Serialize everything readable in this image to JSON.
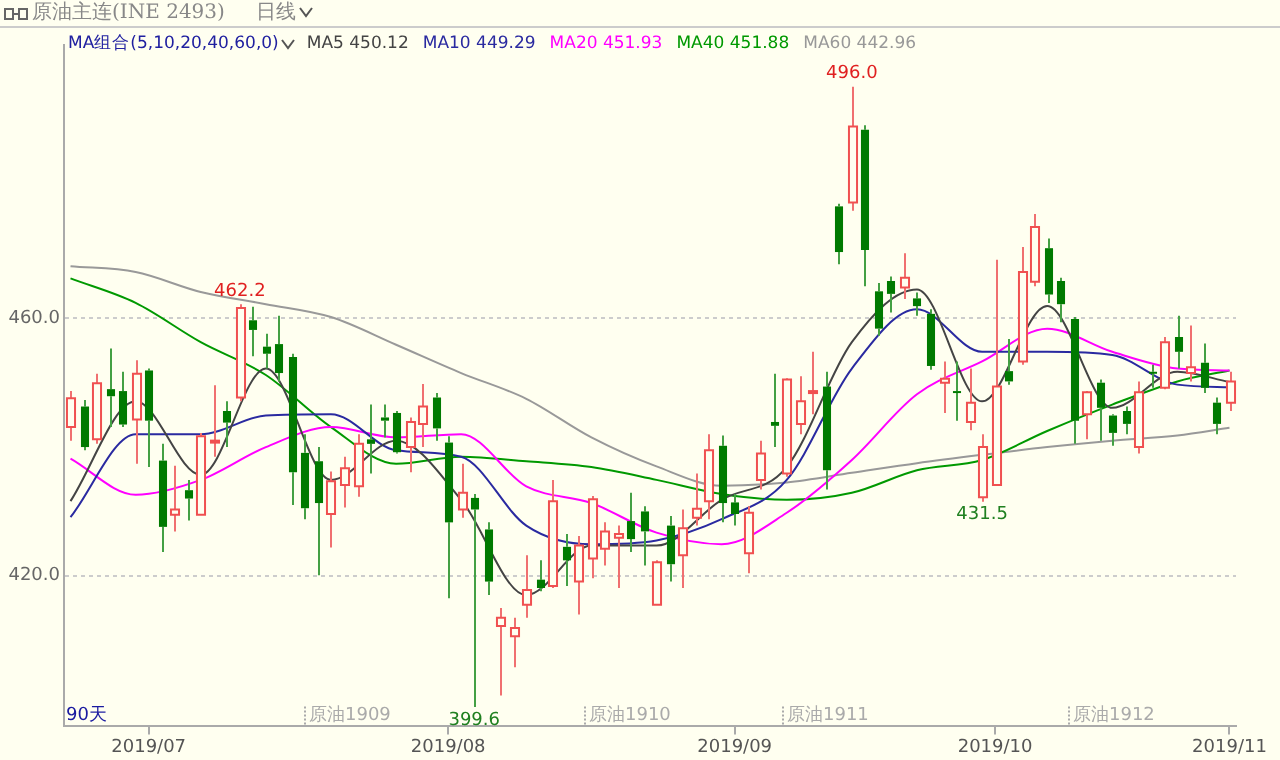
{
  "chart_data": {
    "type": "candlestick",
    "title": "原油主连(INE 2493)",
    "subtitle": "日线",
    "legend_title": "MA组合(5,10,20,40,60,0)",
    "legend": "top left",
    "grid": "y",
    "categories": [
      null,
      null,
      null,
      null,
      null,
      null,
      "2019/07",
      null,
      null,
      null,
      null,
      null,
      null,
      null,
      null,
      null,
      null,
      null,
      null,
      null,
      null,
      null,
      null,
      null,
      null,
      null,
      null,
      null,
      null,
      "2019/08",
      null,
      null,
      null,
      null,
      null,
      null,
      null,
      null,
      null,
      null,
      null,
      null,
      null,
      null,
      null,
      null,
      null,
      null,
      null,
      null,
      null,
      "2019/09",
      null,
      null,
      null,
      null,
      null,
      null,
      null,
      null,
      null,
      null,
      null,
      null,
      null,
      null,
      null,
      null,
      null,
      null,
      null,
      "2019/10",
      null,
      null,
      null,
      null,
      null,
      null,
      null,
      null,
      null,
      null,
      null,
      null,
      null,
      null,
      null,
      null,
      null,
      "2019/11"
    ],
    "ohlc": [
      [
        443.1,
        448.7,
        441.0,
        447.6
      ],
      [
        446.3,
        447.3,
        439.5,
        440.0
      ],
      [
        441.2,
        451.4,
        440.5,
        449.9
      ],
      [
        449.0,
        455.3,
        443.1,
        447.9
      ],
      [
        448.7,
        451.7,
        443.1,
        443.5
      ],
      [
        444.3,
        453.5,
        437.4,
        451.4
      ],
      [
        451.9,
        452.2,
        436.9,
        444.1
      ],
      [
        437.9,
        440.5,
        423.7,
        427.6
      ],
      [
        429.5,
        437.1,
        426.9,
        430.3
      ],
      [
        433.3,
        434.9,
        428.6,
        432.0
      ],
      [
        429.5,
        442.2,
        429.5,
        441.7
      ],
      [
        440.9,
        449.6,
        438.5,
        441.0
      ],
      [
        445.6,
        447.1,
        440.0,
        443.8
      ],
      [
        447.7,
        462.2,
        447.1,
        461.6
      ],
      [
        459.7,
        461.8,
        454.1,
        458.2
      ],
      [
        455.6,
        457.6,
        452.2,
        454.5
      ],
      [
        456.0,
        460.4,
        450.2,
        451.5
      ],
      [
        454.0,
        454.5,
        431.0,
        436.1
      ],
      [
        439.1,
        442.0,
        428.8,
        430.5
      ],
      [
        437.8,
        440.0,
        420.1,
        431.3
      ],
      [
        429.6,
        436.2,
        424.4,
        434.7
      ],
      [
        434.1,
        438.5,
        430.6,
        436.7
      ],
      [
        433.9,
        442.0,
        432.3,
        440.5
      ],
      [
        441.2,
        446.6,
        435.9,
        440.5
      ],
      [
        444.6,
        446.6,
        441.5,
        444.1
      ],
      [
        445.3,
        445.6,
        439.0,
        439.2
      ],
      [
        440.0,
        444.6,
        436.1,
        443.9
      ],
      [
        443.6,
        449.8,
        440.0,
        446.3
      ],
      [
        447.7,
        448.4,
        441.0,
        442.9
      ],
      [
        440.7,
        441.7,
        416.5,
        428.3
      ],
      [
        430.3,
        437.4,
        429.0,
        432.9
      ],
      [
        432.1,
        432.7,
        399.6,
        430.3
      ],
      [
        427.2,
        428.3,
        417.0,
        419.1
      ],
      [
        412.2,
        415.0,
        401.4,
        413.5
      ],
      [
        410.6,
        413.5,
        405.8,
        411.9
      ],
      [
        415.5,
        423.2,
        413.5,
        417.8
      ],
      [
        419.4,
        422.4,
        417.6,
        418.1
      ],
      [
        418.4,
        434.9,
        418.1,
        431.6
      ],
      [
        424.5,
        426.5,
        418.4,
        422.4
      ],
      [
        419.1,
        426.2,
        414.0,
        424.7
      ],
      [
        422.7,
        432.4,
        419.6,
        431.9
      ],
      [
        424.2,
        428.3,
        421.6,
        426.9
      ],
      [
        425.9,
        427.8,
        418.1,
        426.5
      ],
      [
        428.5,
        432.9,
        423.7,
        425.7
      ],
      [
        430.0,
        430.8,
        421.6,
        426.9
      ],
      [
        415.5,
        422.4,
        415.5,
        422.1
      ],
      [
        427.8,
        429.3,
        419.1,
        421.8
      ],
      [
        423.2,
        430.3,
        418.1,
        427.4
      ],
      [
        429.0,
        435.9,
        427.8,
        430.4
      ],
      [
        431.6,
        442.0,
        428.8,
        439.5
      ],
      [
        440.2,
        441.8,
        428.3,
        431.3
      ],
      [
        431.4,
        432.7,
        427.8,
        429.6
      ],
      [
        423.5,
        430.8,
        420.4,
        429.8
      ],
      [
        434.9,
        441.0,
        433.4,
        439.0
      ],
      [
        443.9,
        451.4,
        440.0,
        443.3
      ],
      [
        435.9,
        450.7,
        435.4,
        450.5
      ],
      [
        443.6,
        451.0,
        442.0,
        447.1
      ],
      [
        448.7,
        454.8,
        445.1,
        448.7
      ],
      [
        449.4,
        451.7,
        433.4,
        436.4
      ],
      [
        477.4,
        477.8,
        468.4,
        470.3
      ],
      [
        478.0,
        496.0,
        476.7,
        489.8
      ],
      [
        489.3,
        490.0,
        465.0,
        470.6
      ],
      [
        464.2,
        465.5,
        457.3,
        458.4
      ],
      [
        465.8,
        466.5,
        460.9,
        463.8
      ],
      [
        464.8,
        470.1,
        463.0,
        466.3
      ],
      [
        463.1,
        464.0,
        460.4,
        461.9
      ],
      [
        460.7,
        461.4,
        452.0,
        452.6
      ],
      [
        450.0,
        453.3,
        445.3,
        450.6
      ],
      [
        448.7,
        453.3,
        444.1,
        448.5
      ],
      [
        443.9,
        452.2,
        442.6,
        446.9
      ],
      [
        432.2,
        442.0,
        431.5,
        440.0
      ],
      [
        434.1,
        469.1,
        434.1,
        449.4
      ],
      [
        451.8,
        456.8,
        449.7,
        450.2
      ],
      [
        453.3,
        471.1,
        452.8,
        467.2
      ],
      [
        465.7,
        476.2,
        465.0,
        474.2
      ],
      [
        470.9,
        472.4,
        462.4,
        463.7
      ],
      [
        465.8,
        466.3,
        459.4,
        462.2
      ],
      [
        459.9,
        460.2,
        440.5,
        444.1
      ],
      [
        445.1,
        448.7,
        441.2,
        448.5
      ],
      [
        450.0,
        450.5,
        441.0,
        446.1
      ],
      [
        444.9,
        445.1,
        440.2,
        442.2
      ],
      [
        445.6,
        446.3,
        442.0,
        443.6
      ],
      [
        440.0,
        450.2,
        439.0,
        448.5
      ],
      [
        451.7,
        452.8,
        449.2,
        451.5
      ],
      [
        449.2,
        457.1,
        449.0,
        456.3
      ],
      [
        457.1,
        460.4,
        452.2,
        454.8
      ],
      [
        451.5,
        458.9,
        450.2,
        452.4
      ],
      [
        453.1,
        456.1,
        448.4,
        449.2
      ],
      [
        446.9,
        447.7,
        442.0,
        443.6
      ],
      [
        446.9,
        451.7,
        445.6,
        450.2
      ]
    ],
    "series": [
      {
        "name": "MA5 450.12",
        "color": "#444444",
        "type": "line",
        "values": [
          431.6,
          null,
          null,
          null,
          null,
          447.1,
          null,
          null,
          null,
          null,
          435.7,
          null,
          null,
          null,
          null,
          452.2,
          null,
          null,
          null,
          null,
          434.9,
          null,
          null,
          null,
          null,
          441.0,
          null,
          null,
          null,
          null,
          431.8,
          null,
          null,
          null,
          null,
          417.0,
          null,
          null,
          null,
          null,
          424.7,
          null,
          null,
          null,
          null,
          424.7,
          null,
          null,
          null,
          null,
          431.8,
          null,
          null,
          null,
          null,
          436.9,
          null,
          null,
          null,
          null,
          456.3,
          null,
          null,
          null,
          null,
          464.5,
          null,
          null,
          null,
          null,
          447.1,
          null,
          null,
          null,
          null,
          461.9,
          null,
          null,
          null,
          null,
          446.1,
          null,
          null,
          null,
          null,
          451.7,
          null,
          null,
          null,
          450.1
        ]
      },
      {
        "name": "MA10 449.29",
        "color": "#2a2aa0",
        "type": "line",
        "values": [
          429.1,
          null,
          null,
          null,
          null,
          442.0,
          null,
          null,
          null,
          null,
          442.0,
          null,
          null,
          null,
          null,
          444.9,
          null,
          null,
          null,
          null,
          445.1,
          null,
          null,
          null,
          null,
          439.5,
          null,
          null,
          null,
          null,
          438.5,
          null,
          null,
          null,
          null,
          427.8,
          null,
          null,
          null,
          null,
          424.9,
          null,
          null,
          null,
          null,
          425.5,
          null,
          null,
          null,
          null,
          428.8,
          null,
          null,
          null,
          null,
          434.9,
          null,
          null,
          null,
          null,
          452.2,
          null,
          null,
          null,
          null,
          461.4,
          null,
          null,
          null,
          null,
          454.8,
          null,
          null,
          null,
          null,
          454.8,
          null,
          null,
          null,
          null,
          454.3,
          null,
          null,
          null,
          null,
          449.7,
          null,
          null,
          null,
          449.3
        ]
      },
      {
        "name": "MA20 451.93",
        "color": "#ff00ff",
        "type": "line",
        "values": [
          438.2,
          null,
          null,
          null,
          null,
          432.6,
          null,
          null,
          null,
          null,
          434.9,
          null,
          null,
          null,
          null,
          440.0,
          null,
          null,
          null,
          null,
          443.1,
          null,
          null,
          null,
          null,
          441.5,
          null,
          null,
          null,
          null,
          442.0,
          null,
          null,
          null,
          null,
          433.9,
          null,
          null,
          null,
          null,
          431.3,
          null,
          null,
          null,
          null,
          426.7,
          null,
          null,
          null,
          null,
          424.9,
          null,
          null,
          null,
          null,
          429.8,
          null,
          null,
          null,
          null,
          438.0,
          null,
          null,
          null,
          null,
          448.2,
          null,
          null,
          null,
          null,
          453.3,
          null,
          null,
          null,
          null,
          458.4,
          null,
          null,
          null,
          null,
          454.8,
          null,
          null,
          null,
          null,
          452.2,
          null,
          null,
          null,
          451.9
        ]
      },
      {
        "name": "MA40 451.88",
        "color": "#009900",
        "type": "line",
        "values": [
          466.2,
          null,
          null,
          null,
          null,
          462.4,
          null,
          null,
          null,
          null,
          456.3,
          null,
          null,
          null,
          null,
          451.2,
          null,
          null,
          null,
          null,
          443.1,
          null,
          null,
          null,
          null,
          437.4,
          null,
          null,
          null,
          null,
          438.5,
          null,
          null,
          null,
          null,
          437.8,
          null,
          null,
          null,
          null,
          436.9,
          null,
          null,
          null,
          null,
          434.9,
          null,
          null,
          null,
          null,
          432.7,
          null,
          null,
          null,
          null,
          431.8,
          null,
          null,
          null,
          null,
          432.9,
          null,
          null,
          null,
          null,
          436.4,
          null,
          null,
          null,
          null,
          438.0,
          null,
          null,
          null,
          null,
          442.5,
          null,
          null,
          null,
          null,
          446.6,
          null,
          null,
          null,
          null,
          450.2,
          null,
          null,
          null,
          451.9
        ]
      },
      {
        "name": "MA60 442.96",
        "color": "#999999",
        "type": "line",
        "values": [
          468.1,
          null,
          null,
          null,
          null,
          467.2,
          null,
          null,
          null,
          null,
          464.1,
          null,
          null,
          null,
          null,
          462.2,
          null,
          null,
          null,
          null,
          460.2,
          null,
          null,
          null,
          null,
          455.9,
          null,
          null,
          null,
          null,
          451.5,
          null,
          null,
          null,
          null,
          447.5,
          null,
          null,
          null,
          null,
          441.5,
          null,
          null,
          null,
          null,
          437.0,
          null,
          null,
          null,
          null,
          434.0,
          null,
          null,
          null,
          null,
          434.5,
          null,
          null,
          null,
          null,
          436.0,
          null,
          null,
          null,
          null,
          437.5,
          null,
          null,
          null,
          null,
          438.8,
          null,
          null,
          null,
          null,
          440.0,
          null,
          null,
          null,
          null,
          441.0,
          null,
          null,
          null,
          null,
          441.8,
          null,
          null,
          null,
          443.0
        ]
      }
    ],
    "ylim": [
      396.6,
      502.5
    ],
    "yticks": [
      {
        "value": 420,
        "label": "420.0"
      },
      {
        "value": 460,
        "label": "460.0"
      }
    ],
    "annotations": [
      "90天",
      {
        "text": "462.2",
        "y": 462.2
      },
      {
        "text": "496.0",
        "y": 496.0
      },
      {
        "text": "399.6",
        "y": 399.6
      },
      {
        "text": "431.5",
        "y": 431.5
      },
      "原油1909",
      "原油1910",
      "原油1911",
      "原油1912"
    ]
  }
}
